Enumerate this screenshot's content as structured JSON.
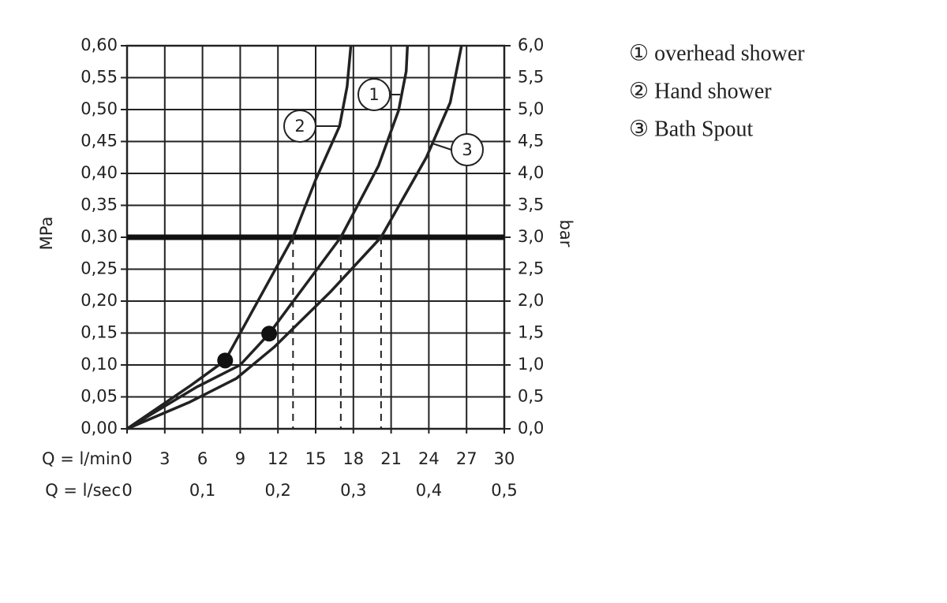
{
  "chart_data": {
    "type": "line",
    "ylabel": "MPa",
    "y2label": "bar",
    "xlabel": "Q = l/min",
    "x2label": "Q = l/sec",
    "xlim": [
      0,
      30
    ],
    "xticks": [
      0,
      3,
      6,
      9,
      12,
      15,
      18,
      21,
      24,
      27,
      30
    ],
    "x2lim": [
      0,
      0.5
    ],
    "x2ticks": [
      0,
      {
        "value": 0.1,
        "label": "0,1"
      },
      {
        "value": 0.2,
        "label": "0,2"
      },
      {
        "value": 0.3,
        "label": "0,3"
      },
      {
        "value": 0.4,
        "label": "0,4"
      },
      {
        "value": 0.5,
        "label": "0,5"
      }
    ],
    "ylim": [
      0,
      0.6
    ],
    "yticks": [
      {
        "value": 0,
        "label": "0,00"
      },
      {
        "value": 0.05,
        "label": "0,05"
      },
      {
        "value": 0.1,
        "label": "0,10"
      },
      {
        "value": 0.15,
        "label": "0,15"
      },
      {
        "value": 0.2,
        "label": "0,20"
      },
      {
        "value": 0.25,
        "label": "0,25"
      },
      {
        "value": 0.3,
        "label": "0,30"
      },
      {
        "value": 0.35,
        "label": "0,35"
      },
      {
        "value": 0.4,
        "label": "0,40"
      },
      {
        "value": 0.45,
        "label": "0,45"
      },
      {
        "value": 0.5,
        "label": "0,50"
      },
      {
        "value": 0.55,
        "label": "0,55"
      },
      {
        "value": 0.6,
        "label": "0,60"
      }
    ],
    "y2lim": [
      0,
      6
    ],
    "y2ticks": [
      {
        "value": 0,
        "label": "0,0"
      },
      {
        "value": 0.5,
        "label": "0,5"
      },
      {
        "value": 1,
        "label": "1,0"
      },
      {
        "value": 1.5,
        "label": "1,5"
      },
      {
        "value": 2,
        "label": "2,0"
      },
      {
        "value": 2.5,
        "label": "2,5"
      },
      {
        "value": 3,
        "label": "3,0"
      },
      {
        "value": 3.5,
        "label": "3,5"
      },
      {
        "value": 4,
        "label": "4,0"
      },
      {
        "value": 4.5,
        "label": "4,5"
      },
      {
        "value": 5,
        "label": "5,0"
      },
      {
        "value": 5.5,
        "label": "5,5"
      },
      {
        "value": 6,
        "label": "6,0"
      }
    ],
    "grid": true,
    "reference_line": 0.3,
    "drop_lines": [
      13.2,
      17,
      20.2
    ],
    "series": [
      {
        "name": "① overhead shower",
        "callout": "1",
        "color": "#222222",
        "x": [
          0,
          5.5,
          9,
          11.3,
          17,
          20,
          21.6,
          22.2,
          22.3
        ],
        "values": [
          0,
          0.065,
          0.1,
          0.149,
          0.3,
          0.412,
          0.499,
          0.56,
          0.6
        ]
      },
      {
        "name": "② Hand shower",
        "callout": "2",
        "color": "#222222",
        "x": [
          0,
          5,
          7.8,
          13.2,
          15,
          16.9,
          17.5,
          17.8
        ],
        "values": [
          0,
          0.067,
          0.107,
          0.3,
          0.39,
          0.474,
          0.536,
          0.6
        ]
      },
      {
        "name": "③ Bath Spout",
        "callout": "3",
        "color": "#222222",
        "x": [
          0,
          5,
          8.7,
          11.7,
          16.2,
          20.2,
          23.8,
          25.7,
          26.6
        ],
        "values": [
          0,
          0.042,
          0.079,
          0.128,
          0.215,
          0.3,
          0.425,
          0.511,
          0.6
        ]
      }
    ],
    "markers": [
      {
        "x": 7.8,
        "y": 0.107
      },
      {
        "x": 11.3,
        "y": 0.149
      }
    ]
  }
}
